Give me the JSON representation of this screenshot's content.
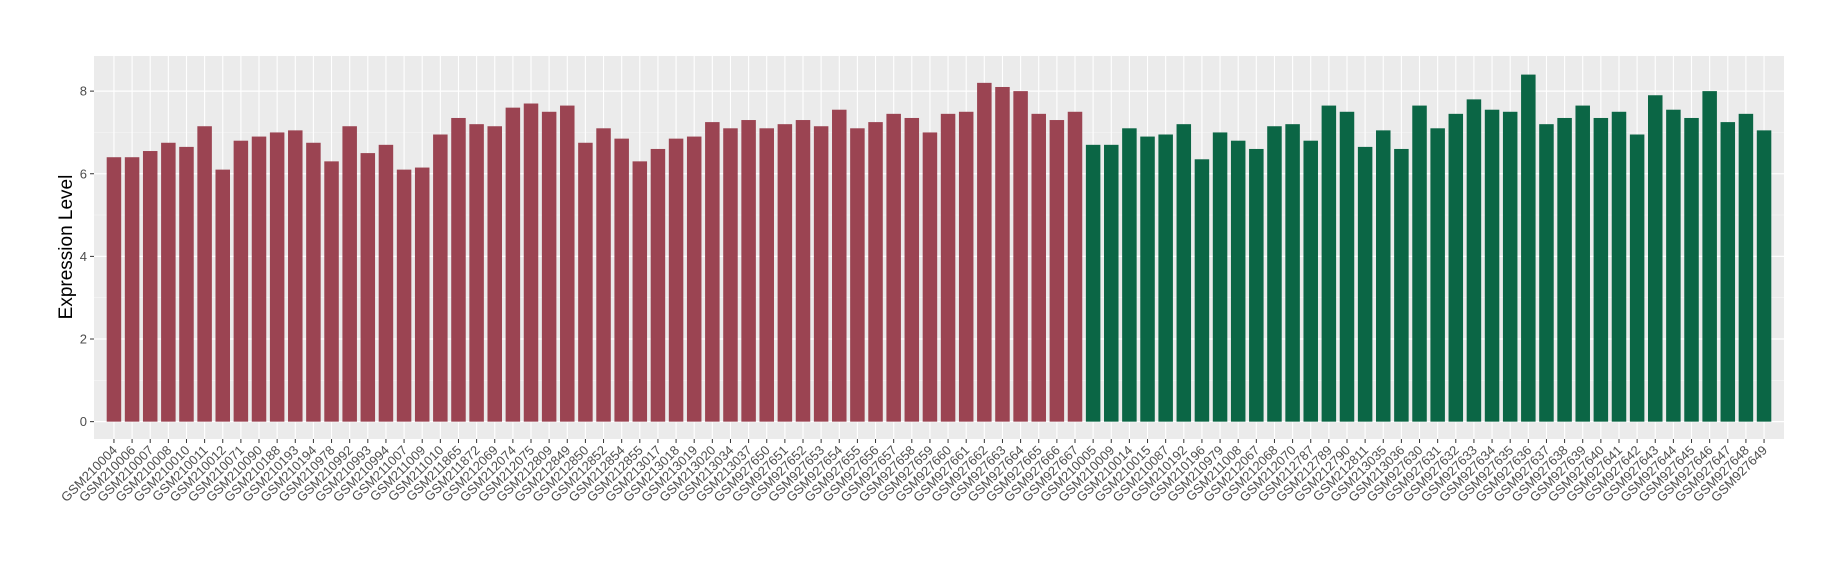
{
  "chart_data": {
    "type": "bar",
    "y_label": "Expression Level",
    "ylim": [
      -0.42,
      8.85
    ],
    "yticks": [
      0,
      2,
      4,
      6,
      8
    ],
    "grid": true,
    "groups": [
      {
        "color": "#9b4452",
        "categories": [
          "GSM210004",
          "GSM210006",
          "GSM210007",
          "GSM210008",
          "GSM210010",
          "GSM210011",
          "GSM210012",
          "GSM210071",
          "GSM210090",
          "GSM210188",
          "GSM210193",
          "GSM210194",
          "GSM210978",
          "GSM210992",
          "GSM210993",
          "GSM210994",
          "GSM211007",
          "GSM211009",
          "GSM211010",
          "GSM211865",
          "GSM211872",
          "GSM212069",
          "GSM212074",
          "GSM212075",
          "GSM212809",
          "GSM212849",
          "GSM212850",
          "GSM212852",
          "GSM212854",
          "GSM212855",
          "GSM213017",
          "GSM213018",
          "GSM213019",
          "GSM213020",
          "GSM213034",
          "GSM213037",
          "GSM927650",
          "GSM927651",
          "GSM927652",
          "GSM927653",
          "GSM927654",
          "GSM927655",
          "GSM927656",
          "GSM927657",
          "GSM927658",
          "GSM927659",
          "GSM927660",
          "GSM927661",
          "GSM927662",
          "GSM927663",
          "GSM927664",
          "GSM927665",
          "GSM927666",
          "GSM927667"
        ],
        "values": [
          6.4,
          6.4,
          6.55,
          6.75,
          6.65,
          7.15,
          6.1,
          6.8,
          6.9,
          7.0,
          7.05,
          6.75,
          6.3,
          7.15,
          6.5,
          6.7,
          6.1,
          6.15,
          6.95,
          7.35,
          7.2,
          7.15,
          7.6,
          7.7,
          7.5,
          7.65,
          6.75,
          7.1,
          6.85,
          6.3,
          6.6,
          6.85,
          6.9,
          7.25,
          7.1,
          7.3,
          7.1,
          7.2,
          7.3,
          7.15,
          7.55,
          7.1,
          7.25,
          7.45,
          7.35,
          7.0,
          7.45,
          7.5,
          8.2,
          8.1,
          8.0,
          7.45,
          7.3,
          7.5
        ]
      },
      {
        "color": "#0b6645",
        "categories": [
          "GSM210005",
          "GSM210009",
          "GSM210014",
          "GSM210015",
          "GSM210087",
          "GSM210192",
          "GSM210196",
          "GSM210979",
          "GSM211008",
          "GSM212067",
          "GSM212068",
          "GSM212070",
          "GSM212787",
          "GSM212789",
          "GSM212790",
          "GSM212811",
          "GSM213035",
          "GSM213036",
          "GSM927630",
          "GSM927631",
          "GSM927632",
          "GSM927633",
          "GSM927634",
          "GSM927635",
          "GSM927636",
          "GSM927637",
          "GSM927638",
          "GSM927639",
          "GSM927640",
          "GSM927641",
          "GSM927642",
          "GSM927643",
          "GSM927644",
          "GSM927645",
          "GSM927646",
          "GSM927647",
          "GSM927648",
          "GSM927649"
        ],
        "values": [
          6.7,
          6.7,
          7.1,
          6.9,
          6.95,
          7.2,
          6.35,
          7.0,
          6.8,
          6.6,
          7.15,
          7.2,
          6.8,
          7.65,
          7.5,
          6.65,
          7.05,
          6.6,
          7.65,
          7.1,
          7.45,
          7.8,
          7.55,
          7.5,
          8.4,
          7.2,
          7.35,
          7.65,
          7.35,
          7.5,
          6.95,
          7.9,
          7.55,
          7.35,
          8.0,
          7.25,
          7.45,
          7.05
        ]
      }
    ]
  }
}
